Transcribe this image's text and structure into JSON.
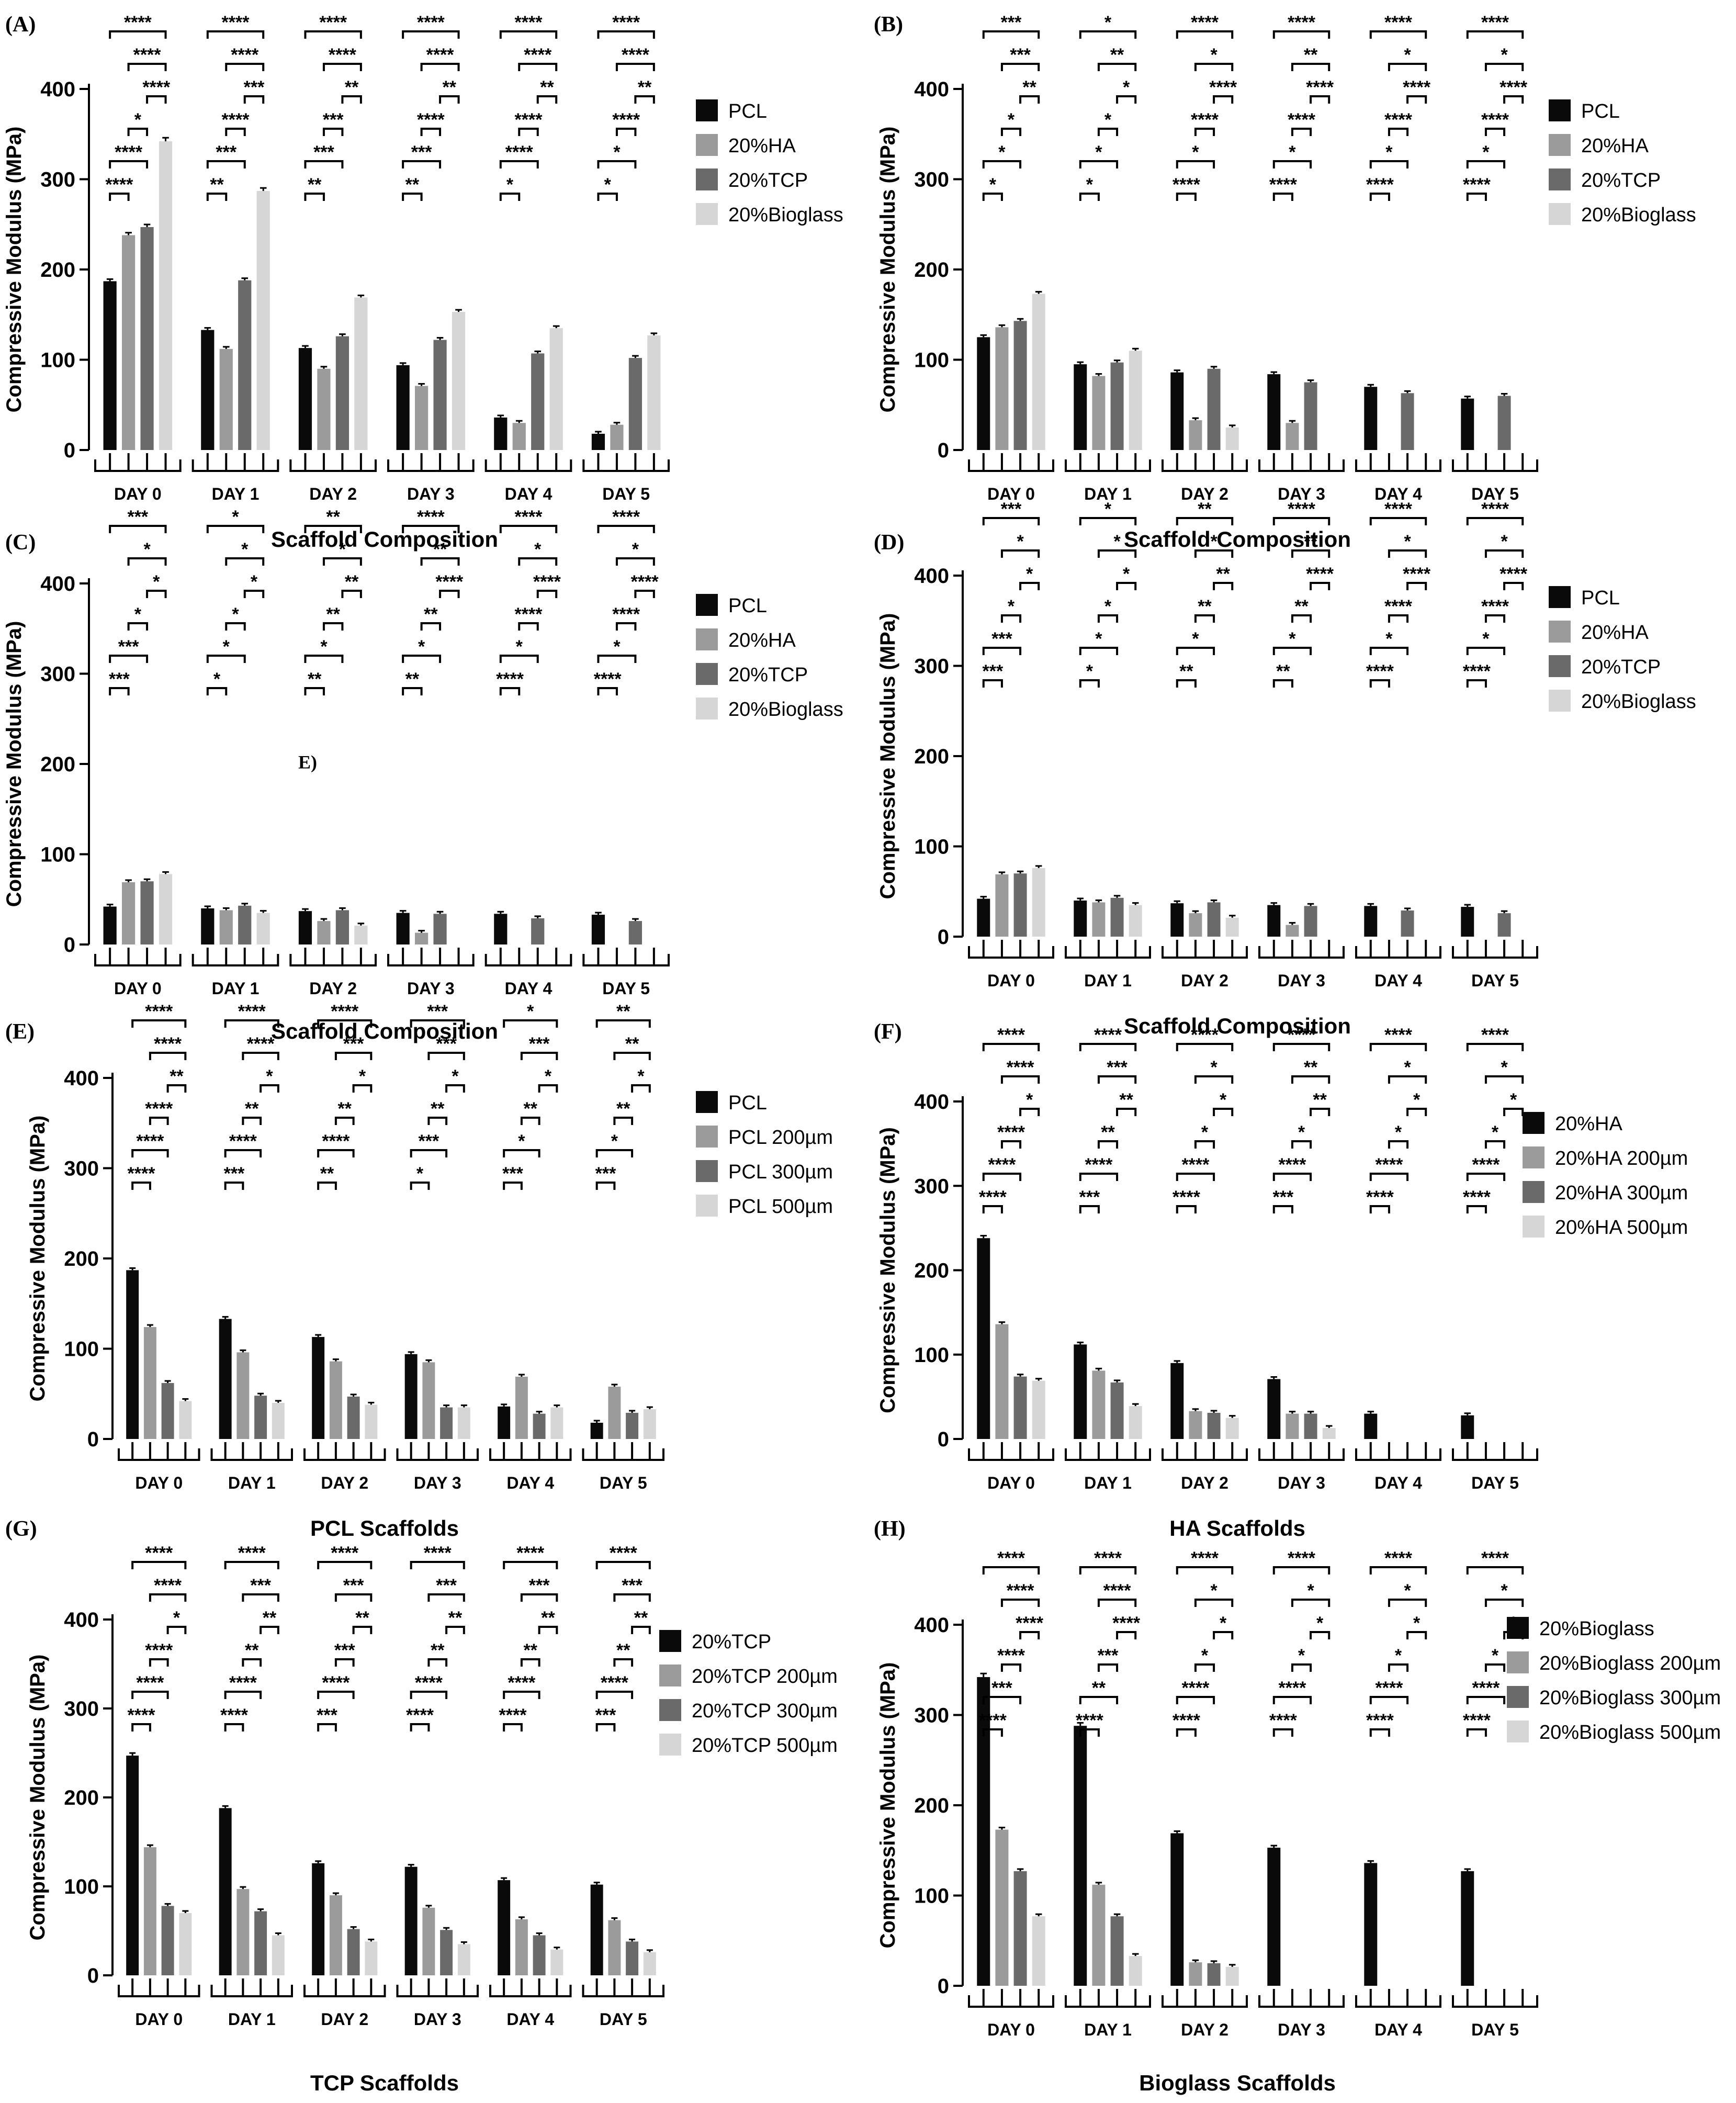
{
  "colors": {
    "black": "#0a0a0a",
    "gray1": "#9b9b9b",
    "gray2": "#6a6a6a",
    "gray3": "#d6d6d6"
  },
  "chart_data": [
    {
      "panel": "(A)",
      "type": "bar",
      "xlabel": "Scaffold Composition",
      "ylabel": "Compressive Modulus (MPa)",
      "ylim": [
        0,
        400
      ],
      "yticks": [
        0,
        100,
        200,
        300,
        400
      ],
      "categories": [
        "DAY 0",
        "DAY 1",
        "DAY 2",
        "DAY 3",
        "DAY 4",
        "DAY 5"
      ],
      "series": [
        {
          "name": "PCL",
          "values": [
            187,
            133,
            113,
            94,
            36,
            18
          ]
        },
        {
          "name": "20%HA",
          "values": [
            238,
            112,
            90,
            71,
            30,
            28
          ]
        },
        {
          "name": "20%TCP",
          "values": [
            247,
            188,
            126,
            122,
            107,
            102
          ]
        },
        {
          "name": "20%Bioglass",
          "values": [
            342,
            287,
            169,
            153,
            135,
            127
          ]
        }
      ],
      "significance": [
        [
          "****",
          "****",
          "****",
          "****",
          "****",
          "****"
        ],
        [
          "****",
          "****",
          "****",
          "****",
          "****",
          "****"
        ],
        [
          "****",
          "***",
          "**",
          "**",
          "**",
          "**"
        ],
        [
          "*",
          "****",
          "***",
          "****",
          "****",
          "****"
        ],
        [
          "****",
          "***",
          "***",
          "***",
          "****",
          "*"
        ],
        [
          "****",
          "**",
          "**",
          "**",
          "*",
          "*"
        ]
      ]
    },
    {
      "panel": "(B)",
      "type": "bar",
      "xlabel": "Scaffold Composition",
      "ylabel": "Compressive Modulus (MPa)",
      "ylim": [
        0,
        400
      ],
      "yticks": [
        0,
        100,
        200,
        300,
        400
      ],
      "categories": [
        "DAY 0",
        "DAY 1",
        "DAY 2",
        "DAY 3",
        "DAY 4",
        "DAY 5"
      ],
      "series": [
        {
          "name": "PCL",
          "values": [
            125,
            95,
            86,
            84,
            70,
            57
          ]
        },
        {
          "name": "20%HA",
          "values": [
            136,
            82,
            33,
            30,
            null,
            null
          ]
        },
        {
          "name": "20%TCP",
          "values": [
            143,
            97,
            90,
            75,
            63,
            60
          ]
        },
        {
          "name": "20%Bioglass",
          "values": [
            173,
            110,
            25,
            null,
            null,
            null
          ]
        }
      ],
      "significance": [
        [
          "***",
          "*",
          "****",
          "****",
          "****",
          "****"
        ],
        [
          "***",
          "**",
          "*",
          "**",
          "*",
          "*"
        ],
        [
          "**",
          "*",
          "****",
          "****",
          "****",
          "****"
        ],
        [
          "*",
          "*",
          "****",
          "****",
          "****",
          "****"
        ],
        [
          "*",
          "*",
          "*",
          "*",
          "*",
          "*"
        ],
        [
          "*",
          "*",
          "****",
          "****",
          "****",
          "****"
        ]
      ]
    },
    {
      "panel": "(C)",
      "type": "bar",
      "xlabel": "Scaffold Composition",
      "ylabel": "Compressive Modulus (MPa)",
      "ylim": [
        0,
        400
      ],
      "yticks": [
        0,
        100,
        200,
        300,
        400
      ],
      "categories": [
        "DAY 0",
        "DAY 1",
        "DAY 2",
        "DAY 3",
        "DAY 4",
        "DAY 5"
      ],
      "series": [
        {
          "name": "PCL",
          "values": [
            42,
            40,
            37,
            35,
            34,
            33
          ]
        },
        {
          "name": "20%HA",
          "values": [
            69,
            38,
            26,
            13,
            null,
            null
          ]
        },
        {
          "name": "20%TCP",
          "values": [
            70,
            43,
            38,
            34,
            29,
            26
          ]
        },
        {
          "name": "20%Bioglass",
          "values": [
            78,
            35,
            21,
            null,
            null,
            null
          ]
        }
      ],
      "significance": [
        [
          "***",
          "*",
          "**",
          "****",
          "****",
          "****"
        ],
        [
          "*",
          "*",
          "*",
          "**",
          "*",
          "*"
        ],
        [
          "*",
          "*",
          "**",
          "****",
          "****",
          "****"
        ],
        [
          "*",
          "*",
          "**",
          "**",
          "****",
          "****"
        ],
        [
          "***",
          "*",
          "*",
          "*",
          "*",
          "*"
        ],
        [
          "***",
          "*",
          "**",
          "**",
          "****",
          "****"
        ]
      ],
      "annotation": "E)"
    },
    {
      "panel": "(D)",
      "type": "bar",
      "xlabel": "Scaffold Composition",
      "ylabel": "Compressive Modulus (MPa)",
      "ylim": [
        0,
        400
      ],
      "yticks": [
        0,
        100,
        200,
        300,
        400
      ],
      "categories": [
        "DAY 0",
        "DAY 1",
        "DAY 2",
        "DAY 3",
        "DAY 4",
        "DAY 5"
      ],
      "series": [
        {
          "name": "PCL",
          "values": [
            42,
            40,
            37,
            35,
            34,
            33
          ]
        },
        {
          "name": "20%HA",
          "values": [
            69,
            38,
            26,
            13,
            null,
            null
          ]
        },
        {
          "name": "20%TCP",
          "values": [
            70,
            43,
            38,
            34,
            29,
            26
          ]
        },
        {
          "name": "20%Bioglass",
          "values": [
            76,
            35,
            21,
            null,
            null,
            null
          ]
        }
      ],
      "significance": [
        [
          "***",
          "*",
          "**",
          "****",
          "****",
          "****"
        ],
        [
          "*",
          "*",
          "*",
          "**",
          "*",
          "*"
        ],
        [
          "*",
          "*",
          "**",
          "****",
          "****",
          "****"
        ],
        [
          "*",
          "*",
          "**",
          "**",
          "****",
          "****"
        ],
        [
          "***",
          "*",
          "*",
          "*",
          "*",
          "*"
        ],
        [
          "***",
          "*",
          "**",
          "**",
          "****",
          "****"
        ]
      ]
    },
    {
      "panel": "(E)",
      "type": "bar",
      "xlabel": "PCL Scaffolds",
      "ylabel": "Compressive Modulus (MPa)",
      "ylim": [
        0,
        400
      ],
      "yticks": [
        0,
        100,
        200,
        300,
        400
      ],
      "categories": [
        "DAY 0",
        "DAY 1",
        "DAY 2",
        "DAY 3",
        "DAY 4",
        "DAY 5"
      ],
      "series": [
        {
          "name": "PCL",
          "values": [
            187,
            133,
            113,
            94,
            36,
            18
          ]
        },
        {
          "name": "PCL 200µm",
          "values": [
            124,
            96,
            86,
            85,
            69,
            58
          ]
        },
        {
          "name": "PCL 300µm",
          "values": [
            62,
            48,
            47,
            35,
            28,
            29
          ]
        },
        {
          "name": "PCL 500µm",
          "values": [
            42,
            40,
            38,
            35,
            35,
            33
          ]
        }
      ],
      "significance": [
        [
          "****",
          "****",
          "****",
          "***",
          "*",
          "**"
        ],
        [
          "****",
          "****",
          "***",
          "***",
          "***",
          "**"
        ],
        [
          "**",
          "*",
          "*",
          "*",
          "*",
          "*"
        ],
        [
          "****",
          "**",
          "**",
          "**",
          "**",
          "**"
        ],
        [
          "****",
          "****",
          "****",
          "***",
          "*",
          "*"
        ],
        [
          "****",
          "***",
          "**",
          "*",
          "***",
          "***"
        ]
      ]
    },
    {
      "panel": "(F)",
      "type": "bar",
      "xlabel": "HA Scaffolds",
      "ylabel": "Compressive Modulus (MPa)",
      "ylim": [
        0,
        400
      ],
      "yticks": [
        0,
        100,
        200,
        300,
        400
      ],
      "categories": [
        "DAY 0",
        "DAY 1",
        "DAY 2",
        "DAY 3",
        "DAY 4",
        "DAY 5"
      ],
      "series": [
        {
          "name": "20%HA",
          "values": [
            238,
            112,
            90,
            71,
            30,
            28
          ]
        },
        {
          "name": "20%HA 200µm",
          "values": [
            136,
            81,
            33,
            30,
            null,
            null
          ]
        },
        {
          "name": "20%HA 300µm",
          "values": [
            74,
            67,
            31,
            30,
            null,
            null
          ]
        },
        {
          "name": "20%HA 500µm",
          "values": [
            69,
            39,
            25,
            13,
            null,
            null
          ]
        }
      ],
      "significance": [
        [
          "****",
          "****",
          "****",
          "****",
          "****",
          "****"
        ],
        [
          "****",
          "***",
          "*",
          "**",
          "*",
          "*"
        ],
        [
          "*",
          "**",
          "*",
          "**",
          "*",
          "*"
        ],
        [
          "****",
          "**",
          "*",
          "*",
          "*",
          "*"
        ],
        [
          "****",
          "****",
          "****",
          "****",
          "****",
          "****"
        ],
        [
          "****",
          "***",
          "****",
          "***",
          "****",
          "****"
        ]
      ]
    },
    {
      "panel": "(G)",
      "type": "bar",
      "xlabel": "TCP Scaffolds",
      "ylabel": "Compressive Modulus (MPa)",
      "ylim": [
        0,
        400
      ],
      "yticks": [
        0,
        100,
        200,
        300,
        400
      ],
      "categories": [
        "DAY 0",
        "DAY 1",
        "DAY 2",
        "DAY 3",
        "DAY 4",
        "DAY 5"
      ],
      "series": [
        {
          "name": "20%TCP",
          "values": [
            247,
            188,
            126,
            122,
            107,
            102
          ]
        },
        {
          "name": "20%TCP 200µm",
          "values": [
            144,
            97,
            90,
            76,
            63,
            62
          ]
        },
        {
          "name": "20%TCP 300µm",
          "values": [
            78,
            72,
            52,
            51,
            45,
            38
          ]
        },
        {
          "name": "20%TCP 500µm",
          "values": [
            70,
            45,
            38,
            35,
            29,
            26
          ]
        }
      ],
      "significance": [
        [
          "****",
          "****",
          "****",
          "****",
          "****",
          "****"
        ],
        [
          "****",
          "***",
          "***",
          "***",
          "***",
          "***"
        ],
        [
          "*",
          "**",
          "**",
          "**",
          "**",
          "**"
        ],
        [
          "****",
          "**",
          "***",
          "**",
          "**",
          "**"
        ],
        [
          "****",
          "****",
          "****",
          "****",
          "****",
          "****"
        ],
        [
          "****",
          "****",
          "***",
          "****",
          "****",
          "***"
        ]
      ]
    },
    {
      "panel": "(H)",
      "type": "bar",
      "xlabel": "Bioglass Scaffolds",
      "ylabel": "Compressive Modulus (MPa)",
      "ylim": [
        0,
        400
      ],
      "yticks": [
        0,
        100,
        200,
        300,
        400
      ],
      "categories": [
        "DAY 0",
        "DAY 1",
        "DAY 2",
        "DAY 3",
        "DAY 4",
        "DAY 5"
      ],
      "series": [
        {
          "name": "20%Bioglass",
          "values": [
            342,
            288,
            169,
            153,
            136,
            127
          ]
        },
        {
          "name": "20%Bioglass 200µm",
          "values": [
            173,
            112,
            26,
            null,
            null,
            null
          ]
        },
        {
          "name": "20%Bioglass 300µm",
          "values": [
            127,
            77,
            25,
            null,
            null,
            null
          ]
        },
        {
          "name": "20%Bioglass 500µm",
          "values": [
            77,
            33,
            21,
            null,
            null,
            null
          ]
        }
      ],
      "significance": [
        [
          "****",
          "****",
          "****",
          "****",
          "****",
          "****"
        ],
        [
          "****",
          "****",
          "*",
          "*",
          "*",
          "*"
        ],
        [
          "****",
          "****",
          "*",
          "*",
          "*",
          "*"
        ],
        [
          "****",
          "***",
          "*",
          "*",
          "*",
          "*"
        ],
        [
          "***",
          "**",
          "****",
          "****",
          "****",
          "****"
        ],
        [
          "****",
          "****",
          "****",
          "****",
          "****",
          "****"
        ]
      ]
    }
  ]
}
